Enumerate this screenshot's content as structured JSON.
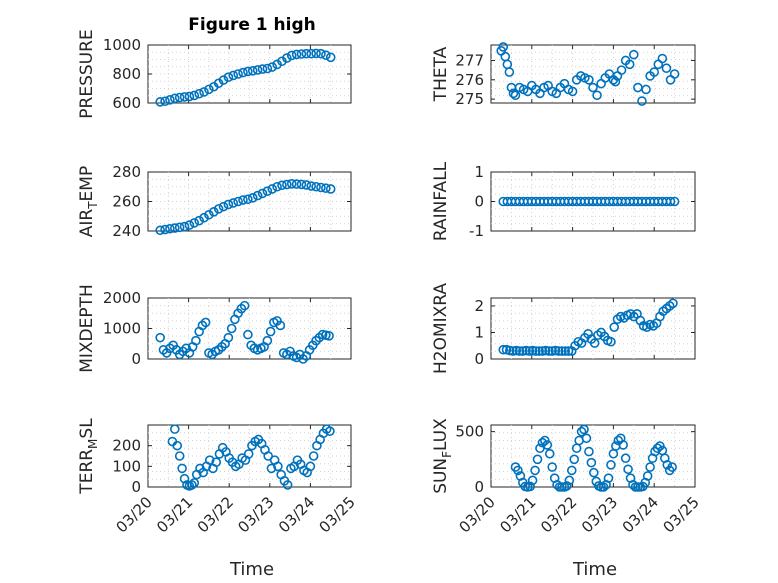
{
  "figure": {
    "title": "Figure 1 high",
    "xlabel": "Time"
  },
  "xticks": [
    "03/20",
    "03/21",
    "03/22",
    "03/23",
    "03/24",
    "03/25"
  ],
  "colors": {
    "marker": "#0072bd",
    "axis": "#262626",
    "grid": "#d4d4d4"
  },
  "chart_data": [
    {
      "type": "scatter",
      "ylabel": "PRESSURE",
      "ylabel_sub": "",
      "ylim": [
        600,
        1000
      ],
      "yticks": [
        600,
        800,
        1000
      ],
      "ytick_labels": [
        "600",
        "800",
        "1000"
      ],
      "xlim": [
        0,
        5
      ],
      "grid": true,
      "x": [
        0.3,
        0.42,
        0.54,
        0.66,
        0.78,
        0.9,
        1.02,
        1.14,
        1.26,
        1.38,
        1.5,
        1.62,
        1.74,
        1.86,
        1.98,
        2.1,
        2.22,
        2.34,
        2.46,
        2.58,
        2.7,
        2.82,
        2.94,
        3.06,
        3.18,
        3.3,
        3.42,
        3.54,
        3.66,
        3.78,
        3.9,
        4.02,
        4.14,
        4.26,
        4.38,
        4.5
      ],
      "y": [
        608,
        612,
        622,
        632,
        638,
        642,
        645,
        652,
        664,
        676,
        694,
        712,
        736,
        758,
        778,
        790,
        800,
        810,
        818,
        822,
        828,
        834,
        838,
        848,
        866,
        888,
        910,
        928,
        935,
        938,
        940,
        940,
        942,
        940,
        930,
        915
      ]
    },
    {
      "type": "scatter",
      "ylabel": "THETA",
      "ylabel_sub": "",
      "ylim": [
        274.8,
        277.8
      ],
      "yticks": [
        275,
        276,
        277
      ],
      "ytick_labels": [
        "275",
        "276",
        "277"
      ],
      "xlim": [
        0,
        5
      ],
      "grid": true,
      "x": [
        0.25,
        0.3,
        0.35,
        0.4,
        0.45,
        0.5,
        0.55,
        0.6,
        0.7,
        0.8,
        0.9,
        1.0,
        1.1,
        1.2,
        1.3,
        1.4,
        1.5,
        1.6,
        1.7,
        1.8,
        1.9,
        2.0,
        2.1,
        2.2,
        2.3,
        2.4,
        2.5,
        2.6,
        2.7,
        2.8,
        2.9,
        3.0,
        3.05,
        3.1,
        3.2,
        3.3,
        3.4,
        3.5,
        3.6,
        3.7,
        3.8,
        3.9,
        4.0,
        4.1,
        4.2,
        4.3,
        4.4,
        4.5
      ],
      "y": [
        277.5,
        277.7,
        277.2,
        276.8,
        276.4,
        275.6,
        275.3,
        275.2,
        275.6,
        275.5,
        275.4,
        275.7,
        275.5,
        275.3,
        275.6,
        275.7,
        275.4,
        275.3,
        275.6,
        275.8,
        275.5,
        275.4,
        276.0,
        276.2,
        276.1,
        276.0,
        275.6,
        275.2,
        275.8,
        276.1,
        276.3,
        276.0,
        275.9,
        276.2,
        276.5,
        277.0,
        276.8,
        277.3,
        275.6,
        274.9,
        275.5,
        276.2,
        276.4,
        276.8,
        277.1,
        276.6,
        276.0,
        276.3
      ]
    },
    {
      "type": "scatter",
      "ylabel": "AIR",
      "ylabel_sub": "T",
      "ylabel_after": "EMP",
      "ylim": [
        240,
        280
      ],
      "yticks": [
        240,
        260,
        280
      ],
      "ytick_labels": [
        "240",
        "260",
        "280"
      ],
      "xlim": [
        0,
        5
      ],
      "grid": true,
      "x": [
        0.3,
        0.42,
        0.54,
        0.66,
        0.78,
        0.9,
        1.02,
        1.14,
        1.26,
        1.38,
        1.5,
        1.62,
        1.74,
        1.86,
        1.98,
        2.1,
        2.22,
        2.34,
        2.46,
        2.58,
        2.7,
        2.82,
        2.94,
        3.06,
        3.18,
        3.3,
        3.42,
        3.54,
        3.66,
        3.78,
        3.9,
        4.02,
        4.14,
        4.26,
        4.38,
        4.5
      ],
      "y": [
        240.5,
        241,
        241.5,
        242,
        242.5,
        243,
        244,
        245.5,
        247,
        249,
        251,
        253,
        255,
        256.5,
        258,
        259,
        260,
        261,
        261.5,
        262.5,
        264,
        265.5,
        267,
        268.5,
        270,
        271,
        271.5,
        272,
        271.8,
        271.6,
        271.2,
        270.5,
        270,
        269.5,
        269,
        268.5
      ]
    },
    {
      "type": "scatter",
      "ylabel": "RAINFALL",
      "ylabel_sub": "",
      "ylim": [
        -1,
        1
      ],
      "yticks": [
        -1,
        0,
        1
      ],
      "ytick_labels": [
        "-1",
        "0",
        "1"
      ],
      "xlim": [
        0,
        5
      ],
      "grid": true,
      "x": [
        0.3,
        0.4,
        0.5,
        0.6,
        0.7,
        0.8,
        0.9,
        1.0,
        1.1,
        1.2,
        1.3,
        1.4,
        1.5,
        1.6,
        1.7,
        1.8,
        1.9,
        2.0,
        2.1,
        2.2,
        2.3,
        2.4,
        2.5,
        2.6,
        2.7,
        2.8,
        2.9,
        3.0,
        3.1,
        3.2,
        3.3,
        3.4,
        3.5,
        3.6,
        3.7,
        3.8,
        3.9,
        4.0,
        4.1,
        4.2,
        4.3,
        4.4,
        4.5
      ],
      "y": [
        0,
        0,
        0,
        0,
        0,
        0,
        0,
        0,
        0,
        0,
        0,
        0,
        0,
        0,
        0,
        0,
        0,
        0,
        0,
        0,
        0,
        0,
        0,
        0,
        0,
        0,
        0,
        0,
        0,
        0,
        0,
        0,
        0,
        0,
        0,
        0,
        0,
        0,
        0,
        0,
        0,
        0,
        0
      ]
    },
    {
      "type": "scatter",
      "ylabel": "MIXDEPTH",
      "ylabel_sub": "",
      "ylim": [
        0,
        2000
      ],
      "yticks": [
        0,
        1000,
        2000
      ],
      "ytick_labels": [
        "0",
        "1000",
        "2000"
      ],
      "xlim": [
        0,
        5
      ],
      "grid": true,
      "x": [
        0.3,
        0.38,
        0.46,
        0.54,
        0.62,
        0.7,
        0.78,
        0.86,
        0.94,
        1.02,
        1.1,
        1.18,
        1.26,
        1.34,
        1.42,
        1.5,
        1.58,
        1.66,
        1.74,
        1.82,
        1.9,
        1.98,
        2.06,
        2.14,
        2.22,
        2.3,
        2.38,
        2.46,
        2.54,
        2.62,
        2.7,
        2.78,
        2.86,
        2.94,
        3.02,
        3.1,
        3.18,
        3.26,
        3.34,
        3.42,
        3.5,
        3.58,
        3.66,
        3.74,
        3.82,
        3.9,
        3.98,
        4.06,
        4.14,
        4.22,
        4.3,
        4.38,
        4.46
      ],
      "y": [
        700,
        300,
        200,
        350,
        450,
        300,
        150,
        250,
        350,
        200,
        400,
        600,
        900,
        1100,
        1200,
        200,
        150,
        250,
        300,
        400,
        500,
        700,
        1000,
        1300,
        1500,
        1650,
        1750,
        800,
        450,
        350,
        300,
        350,
        400,
        600,
        900,
        1200,
        1250,
        1100,
        200,
        150,
        250,
        100,
        50,
        150,
        0,
        100,
        300,
        450,
        600,
        700,
        800,
        780,
        760
      ]
    },
    {
      "type": "scatter",
      "ylabel": "H2OMIXRA",
      "ylabel_sub": "",
      "ylim": [
        0,
        2.3
      ],
      "yticks": [
        0,
        1,
        2
      ],
      "ytick_labels": [
        "0",
        "1",
        "2"
      ],
      "xlim": [
        0,
        5
      ],
      "grid": true,
      "x": [
        0.3,
        0.38,
        0.46,
        0.54,
        0.62,
        0.7,
        0.78,
        0.86,
        0.94,
        1.02,
        1.1,
        1.18,
        1.26,
        1.34,
        1.42,
        1.5,
        1.58,
        1.66,
        1.74,
        1.82,
        1.9,
        1.98,
        2.06,
        2.14,
        2.22,
        2.3,
        2.38,
        2.46,
        2.54,
        2.62,
        2.7,
        2.78,
        2.86,
        2.94,
        3.02,
        3.1,
        3.18,
        3.26,
        3.34,
        3.42,
        3.5,
        3.58,
        3.66,
        3.74,
        3.82,
        3.9,
        3.98,
        4.06,
        4.14,
        4.22,
        4.3,
        4.38,
        4.46
      ],
      "y": [
        0.35,
        0.35,
        0.32,
        0.3,
        0.32,
        0.3,
        0.3,
        0.32,
        0.3,
        0.32,
        0.3,
        0.3,
        0.3,
        0.32,
        0.3,
        0.3,
        0.32,
        0.3,
        0.3,
        0.3,
        0.3,
        0.3,
        0.5,
        0.65,
        0.6,
        0.8,
        0.95,
        0.75,
        0.6,
        0.9,
        1.0,
        0.85,
        0.7,
        0.65,
        1.2,
        1.5,
        1.6,
        1.55,
        1.65,
        1.7,
        1.6,
        1.7,
        1.45,
        1.25,
        1.2,
        1.3,
        1.25,
        1.35,
        1.6,
        1.8,
        1.9,
        2.0,
        2.1
      ]
    },
    {
      "type": "scatter",
      "ylabel": "TERR",
      "ylabel_sub": "M",
      "ylabel_after": "SL",
      "ylim": [
        0,
        300
      ],
      "yticks": [
        0,
        100,
        200
      ],
      "ytick_labels": [
        "0",
        "100",
        "200"
      ],
      "xlim": [
        0,
        5
      ],
      "grid": true,
      "x": [
        0.6,
        0.66,
        0.72,
        0.78,
        0.84,
        0.9,
        0.96,
        1.02,
        1.08,
        1.14,
        1.2,
        1.28,
        1.36,
        1.44,
        1.52,
        1.6,
        1.68,
        1.76,
        1.84,
        1.92,
        2.0,
        2.08,
        2.16,
        2.24,
        2.32,
        2.4,
        2.48,
        2.56,
        2.64,
        2.72,
        2.8,
        2.88,
        2.96,
        3.04,
        3.12,
        3.2,
        3.28,
        3.36,
        3.44,
        3.52,
        3.6,
        3.68,
        3.76,
        3.84,
        3.92,
        4.0,
        4.08,
        4.16,
        4.24,
        4.32,
        4.4,
        4.48
      ],
      "y": [
        220,
        280,
        200,
        150,
        90,
        40,
        10,
        5,
        10,
        20,
        60,
        90,
        70,
        100,
        130,
        90,
        120,
        160,
        190,
        170,
        140,
        120,
        100,
        110,
        140,
        130,
        160,
        200,
        220,
        230,
        210,
        180,
        150,
        90,
        130,
        100,
        60,
        30,
        10,
        90,
        100,
        130,
        110,
        80,
        70,
        100,
        150,
        200,
        230,
        260,
        280,
        270
      ]
    },
    {
      "type": "scatter",
      "ylabel": "SUN",
      "ylabel_sub": "F",
      "ylabel_after": "LUX",
      "ylim": [
        0,
        560
      ],
      "yticks": [
        0,
        500
      ],
      "ytick_labels": [
        "0",
        "500"
      ],
      "xlim": [
        0,
        5
      ],
      "grid": true,
      "x": [
        0.6,
        0.66,
        0.72,
        0.78,
        0.84,
        0.9,
        0.96,
        1.02,
        1.08,
        1.14,
        1.2,
        1.26,
        1.32,
        1.38,
        1.44,
        1.5,
        1.56,
        1.62,
        1.68,
        1.74,
        1.8,
        1.86,
        1.92,
        1.98,
        2.04,
        2.1,
        2.16,
        2.22,
        2.28,
        2.34,
        2.4,
        2.46,
        2.52,
        2.58,
        2.64,
        2.7,
        2.76,
        2.82,
        2.88,
        2.94,
        3.0,
        3.06,
        3.12,
        3.18,
        3.24,
        3.3,
        3.36,
        3.42,
        3.48,
        3.54,
        3.6,
        3.66,
        3.72,
        3.78,
        3.84,
        3.9,
        3.96,
        4.02,
        4.08,
        4.14,
        4.2,
        4.26,
        4.32,
        4.38,
        4.44
      ],
      "y": [
        180,
        150,
        100,
        40,
        5,
        0,
        5,
        60,
        150,
        250,
        350,
        400,
        420,
        380,
        300,
        180,
        80,
        20,
        0,
        0,
        0,
        10,
        60,
        150,
        250,
        350,
        420,
        500,
        520,
        440,
        320,
        220,
        130,
        50,
        10,
        0,
        0,
        20,
        80,
        200,
        300,
        370,
        420,
        440,
        380,
        260,
        160,
        80,
        20,
        0,
        0,
        0,
        5,
        40,
        100,
        180,
        260,
        320,
        350,
        370,
        330,
        260,
        200,
        150,
        180
      ]
    }
  ]
}
